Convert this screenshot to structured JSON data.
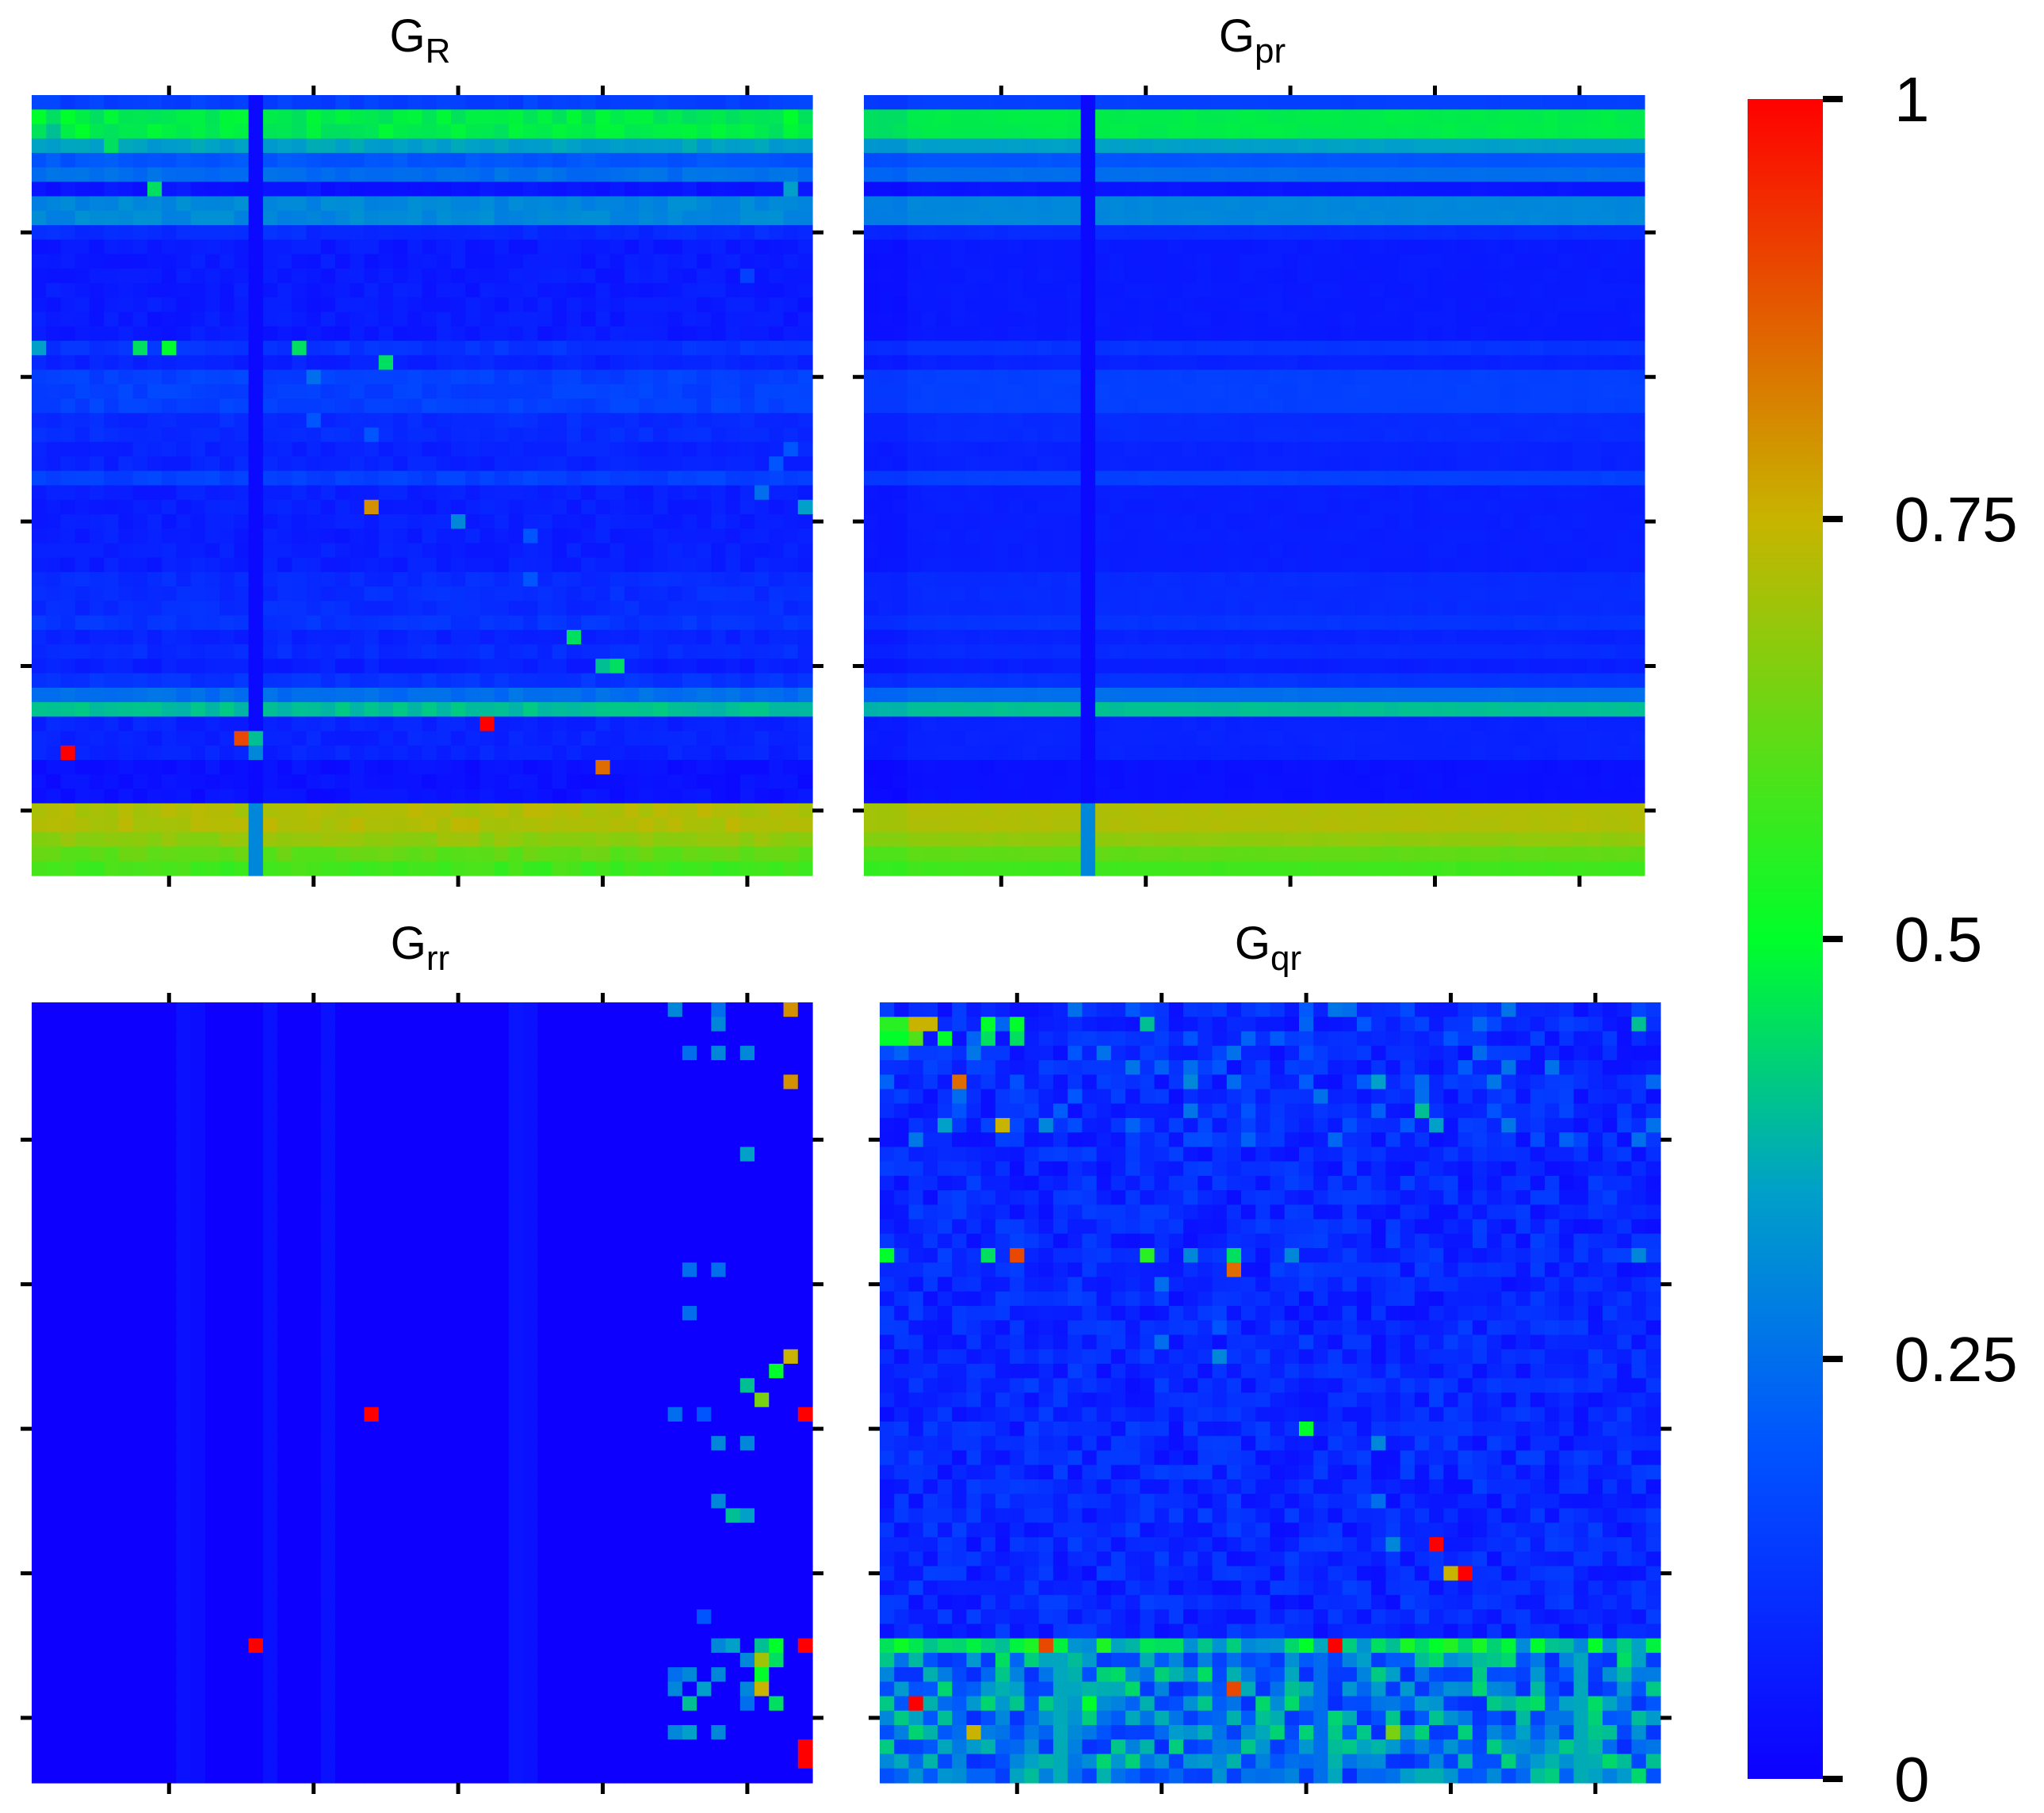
{
  "chart_data": [
    {
      "type": "heatmap",
      "id": "GR",
      "title": "G",
      "title_sub": "R",
      "rows": 54,
      "cols": 54,
      "vmin": 0,
      "vmax": 1,
      "row_bands": [
        [
          0,
          0,
          0.15
        ],
        [
          1,
          2,
          0.47
        ],
        [
          3,
          3,
          0.35
        ],
        [
          4,
          4,
          0.2
        ],
        [
          5,
          5,
          0.25
        ],
        [
          6,
          6,
          0.05
        ],
        [
          7,
          8,
          0.3
        ],
        [
          9,
          9,
          0.1
        ],
        [
          10,
          16,
          0.06
        ],
        [
          17,
          17,
          0.12
        ],
        [
          18,
          18,
          0.08
        ],
        [
          19,
          21,
          0.15
        ],
        [
          22,
          23,
          0.1
        ],
        [
          24,
          25,
          0.08
        ],
        [
          26,
          26,
          0.15
        ],
        [
          27,
          32,
          0.07
        ],
        [
          33,
          35,
          0.1
        ],
        [
          36,
          36,
          0.12
        ],
        [
          37,
          37,
          0.08
        ],
        [
          38,
          38,
          0.1
        ],
        [
          39,
          39,
          0.07
        ],
        [
          40,
          40,
          0.12
        ],
        [
          41,
          41,
          0.25
        ],
        [
          42,
          42,
          0.4
        ],
        [
          43,
          45,
          0.08
        ],
        [
          46,
          48,
          0.04
        ],
        [
          49,
          50,
          0.72
        ],
        [
          51,
          51,
          0.68
        ],
        [
          52,
          52,
          0.62
        ],
        [
          53,
          54,
          0.58
        ]
      ],
      "special_cols": [
        [
          15,
          0.02
        ]
      ],
      "cells": [
        [
          1,
          0,
          0.5
        ],
        [
          1,
          1,
          0.45
        ],
        [
          1,
          2,
          0.5
        ],
        [
          2,
          1,
          0.4
        ],
        [
          2,
          3,
          0.5
        ],
        [
          1,
          4,
          0.45
        ],
        [
          3,
          5,
          0.45
        ],
        [
          6,
          8,
          0.45
        ],
        [
          6,
          52,
          0.35
        ],
        [
          1,
          52,
          0.5
        ],
        [
          12,
          49,
          0.15
        ],
        [
          17,
          0,
          0.35
        ],
        [
          17,
          7,
          0.45
        ],
        [
          17,
          9,
          0.5
        ],
        [
          17,
          18,
          0.45
        ],
        [
          18,
          24,
          0.45
        ],
        [
          19,
          19,
          0.25
        ],
        [
          22,
          19,
          0.2
        ],
        [
          23,
          23,
          0.2
        ],
        [
          24,
          52,
          0.2
        ],
        [
          25,
          51,
          0.2
        ],
        [
          27,
          50,
          0.25
        ],
        [
          28,
          23,
          0.8
        ],
        [
          28,
          53,
          0.35
        ],
        [
          29,
          29,
          0.3
        ],
        [
          30,
          34,
          0.2
        ],
        [
          33,
          34,
          0.2
        ],
        [
          37,
          37,
          0.45
        ],
        [
          39,
          39,
          0.4
        ],
        [
          39,
          40,
          0.45
        ],
        [
          44,
          15,
          0.4
        ],
        [
          45,
          2,
          1.0
        ],
        [
          44,
          14,
          0.9
        ],
        [
          43,
          31,
          1.0
        ],
        [
          46,
          39,
          0.85
        ],
        [
          45,
          15,
          0.3
        ]
      ]
    },
    {
      "type": "heatmap",
      "id": "Gpr",
      "title": "G",
      "title_sub": "pr",
      "rows": 54,
      "cols": 54,
      "vmin": 0,
      "vmax": 1,
      "row_bands": [
        [
          0,
          0,
          0.15
        ],
        [
          1,
          2,
          0.47
        ],
        [
          3,
          3,
          0.35
        ],
        [
          4,
          4,
          0.2
        ],
        [
          5,
          5,
          0.25
        ],
        [
          6,
          6,
          0.05
        ],
        [
          7,
          8,
          0.3
        ],
        [
          9,
          9,
          0.1
        ],
        [
          10,
          16,
          0.06
        ],
        [
          17,
          17,
          0.12
        ],
        [
          18,
          18,
          0.08
        ],
        [
          19,
          21,
          0.15
        ],
        [
          22,
          23,
          0.1
        ],
        [
          24,
          25,
          0.08
        ],
        [
          26,
          26,
          0.15
        ],
        [
          27,
          32,
          0.07
        ],
        [
          33,
          35,
          0.1
        ],
        [
          36,
          36,
          0.12
        ],
        [
          37,
          37,
          0.08
        ],
        [
          38,
          38,
          0.1
        ],
        [
          39,
          39,
          0.07
        ],
        [
          40,
          40,
          0.12
        ],
        [
          41,
          41,
          0.25
        ],
        [
          42,
          42,
          0.4
        ],
        [
          43,
          45,
          0.08
        ],
        [
          46,
          48,
          0.04
        ],
        [
          49,
          50,
          0.72
        ],
        [
          51,
          51,
          0.68
        ],
        [
          52,
          52,
          0.62
        ],
        [
          53,
          54,
          0.58
        ]
      ],
      "special_cols": [
        [
          15,
          0.02
        ]
      ],
      "cells": []
    },
    {
      "type": "heatmap",
      "id": "Grr",
      "title": "G",
      "title_sub": "rr",
      "rows": 54,
      "cols": 54,
      "vmin": 0,
      "vmax": 1,
      "background": 0.0,
      "special_cols": [
        [
          10,
          0.04
        ],
        [
          11,
          0.03
        ],
        [
          16,
          0.04
        ],
        [
          20,
          0.04
        ],
        [
          33,
          0.05
        ],
        [
          34,
          0.04
        ]
      ],
      "cells": [
        [
          0,
          44,
          0.3
        ],
        [
          0,
          47,
          0.25
        ],
        [
          0,
          52,
          0.8
        ],
        [
          1,
          47,
          0.3
        ],
        [
          3,
          45,
          0.25
        ],
        [
          3,
          47,
          0.3
        ],
        [
          3,
          49,
          0.3
        ],
        [
          5,
          52,
          0.8
        ],
        [
          10,
          49,
          0.35
        ],
        [
          18,
          45,
          0.25
        ],
        [
          18,
          47,
          0.25
        ],
        [
          21,
          45,
          0.25
        ],
        [
          24,
          52,
          0.75
        ],
        [
          25,
          51,
          0.5
        ],
        [
          26,
          49,
          0.4
        ],
        [
          27,
          50,
          0.65
        ],
        [
          28,
          44,
          0.25
        ],
        [
          28,
          46,
          0.2
        ],
        [
          28,
          23,
          1.0
        ],
        [
          28,
          53,
          1.0
        ],
        [
          30,
          47,
          0.3
        ],
        [
          30,
          49,
          0.3
        ],
        [
          34,
          47,
          0.3
        ],
        [
          35,
          48,
          0.4
        ],
        [
          35,
          49,
          0.35
        ],
        [
          42,
          46,
          0.2
        ],
        [
          44,
          15,
          1.0
        ],
        [
          44,
          53,
          1.0
        ],
        [
          44,
          47,
          0.3
        ],
        [
          44,
          48,
          0.35
        ],
        [
          44,
          50,
          0.4
        ],
        [
          44,
          51,
          0.5
        ],
        [
          45,
          49,
          0.3
        ],
        [
          45,
          50,
          0.7
        ],
        [
          45,
          51,
          0.45
        ],
        [
          46,
          44,
          0.25
        ],
        [
          46,
          45,
          0.3
        ],
        [
          46,
          47,
          0.3
        ],
        [
          46,
          50,
          0.5
        ],
        [
          47,
          44,
          0.3
        ],
        [
          47,
          46,
          0.35
        ],
        [
          47,
          49,
          0.3
        ],
        [
          47,
          50,
          0.75
        ],
        [
          48,
          45,
          0.4
        ],
        [
          48,
          49,
          0.25
        ],
        [
          48,
          51,
          0.45
        ],
        [
          50,
          44,
          0.3
        ],
        [
          50,
          45,
          0.35
        ],
        [
          50,
          47,
          0.3
        ],
        [
          51,
          53,
          1.0
        ],
        [
          52,
          53,
          1.0
        ]
      ]
    },
    {
      "type": "heatmap",
      "id": "Gqr",
      "title": "G",
      "title_sub": "qr",
      "rows": 54,
      "cols": 54,
      "vmin": 0,
      "vmax": 1,
      "cells": [
        [
          1,
          0,
          0.55
        ],
        [
          1,
          1,
          0.55
        ],
        [
          1,
          2,
          0.75
        ],
        [
          1,
          3,
          0.75
        ],
        [
          2,
          0,
          0.5
        ],
        [
          2,
          1,
          0.5
        ],
        [
          2,
          2,
          0.6
        ],
        [
          2,
          4,
          0.5
        ],
        [
          1,
          7,
          0.5
        ],
        [
          2,
          7,
          0.45
        ],
        [
          1,
          9,
          0.5
        ],
        [
          2,
          9,
          0.45
        ],
        [
          1,
          18,
          0.4
        ],
        [
          1,
          52,
          0.4
        ],
        [
          5,
          5,
          0.85
        ],
        [
          5,
          21,
          0.3
        ],
        [
          5,
          34,
          0.35
        ],
        [
          8,
          4,
          0.35
        ],
        [
          8,
          8,
          0.75
        ],
        [
          8,
          11,
          0.3
        ],
        [
          8,
          38,
          0.35
        ],
        [
          7,
          37,
          0.4
        ],
        [
          17,
          0,
          0.5
        ],
        [
          17,
          7,
          0.45
        ],
        [
          17,
          9,
          0.9
        ],
        [
          17,
          18,
          0.55
        ],
        [
          17,
          21,
          0.3
        ],
        [
          17,
          24,
          0.45
        ],
        [
          17,
          28,
          0.3
        ],
        [
          17,
          52,
          0.3
        ],
        [
          18,
          24,
          0.85
        ],
        [
          19,
          19,
          0.25
        ],
        [
          21,
          23,
          0.15
        ],
        [
          22,
          23,
          0.2
        ],
        [
          23,
          19,
          0.25
        ],
        [
          24,
          23,
          0.3
        ],
        [
          29,
          29,
          0.5
        ],
        [
          30,
          34,
          0.3
        ],
        [
          34,
          34,
          0.25
        ],
        [
          37,
          35,
          0.3
        ],
        [
          37,
          38,
          1.0
        ],
        [
          39,
          39,
          0.75
        ],
        [
          39,
          40,
          1.0
        ],
        [
          44,
          11,
          0.9
        ],
        [
          44,
          31,
          1.0
        ],
        [
          47,
          24,
          0.9
        ],
        [
          48,
          2,
          1.0
        ],
        [
          48,
          14,
          0.5
        ],
        [
          50,
          6,
          0.75
        ],
        [
          50,
          35,
          0.65
        ]
      ],
      "noisy_band_rows": [
        44,
        53
      ]
    }
  ],
  "colorbar": {
    "ticks": [
      {
        "value": 1,
        "label": "1"
      },
      {
        "value": 0.75,
        "label": "0.75"
      },
      {
        "value": 0.5,
        "label": "0.5"
      },
      {
        "value": 0.25,
        "label": "0.25"
      },
      {
        "value": 0,
        "label": "0"
      }
    ],
    "colors": [
      "#0d00ff",
      "#0055ff",
      "#00a0c8",
      "#00ff2a",
      "#c8b400",
      "#ff0000"
    ]
  }
}
